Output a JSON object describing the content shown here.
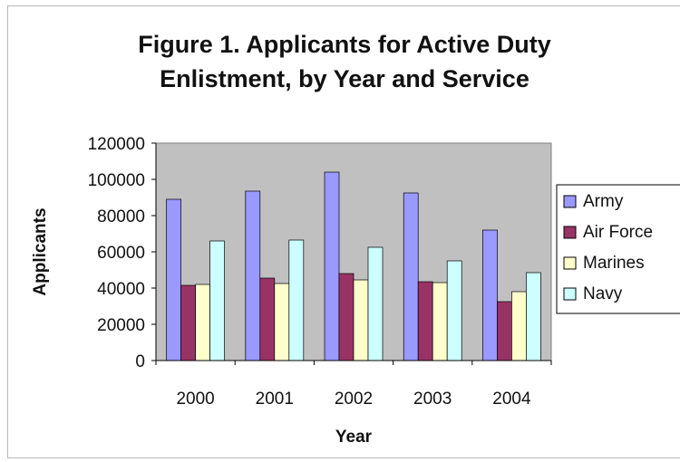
{
  "chart_data": {
    "type": "bar",
    "title_line1": "Figure 1.  Applicants for Active Duty",
    "title_line2": "Enlistment, by Year and Service",
    "xlabel": "Year",
    "ylabel": "Applicants",
    "categories": [
      "2000",
      "2001",
      "2002",
      "2003",
      "2004"
    ],
    "series": [
      {
        "name": "Army",
        "color": "#9999ff",
        "values": [
          89000,
          93500,
          104000,
          92500,
          72000
        ]
      },
      {
        "name": "Air Force",
        "color": "#993366",
        "values": [
          41500,
          45500,
          48000,
          43500,
          32500
        ]
      },
      {
        "name": "Marines",
        "color": "#ffffcc",
        "values": [
          42000,
          42500,
          44500,
          43000,
          38000
        ]
      },
      {
        "name": "Navy",
        "color": "#ccffff",
        "values": [
          66000,
          66500,
          62500,
          55000,
          48500
        ]
      }
    ],
    "ylim": [
      0,
      120000
    ],
    "yticks": [
      "0",
      "20000",
      "40000",
      "60000",
      "80000",
      "100000",
      "120000"
    ],
    "grid": false,
    "legend_position": "right",
    "plot_background": "#c0c0c0"
  }
}
